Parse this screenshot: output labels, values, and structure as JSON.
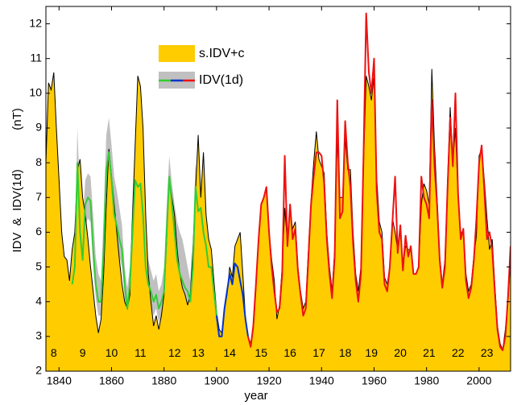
{
  "chart_data": {
    "type": "line",
    "xlabel": "year",
    "ylabel": "IDV  &  IDV(1d)",
    "ylabel_units": "(nT)",
    "xlim": [
      1835,
      2012
    ],
    "ylim": [
      2,
      12.5
    ],
    "xticks": [
      1840,
      1860,
      1880,
      1900,
      1920,
      1940,
      1960,
      1980,
      2000
    ],
    "yticks": [
      2,
      3,
      4,
      5,
      6,
      7,
      8,
      9,
      10,
      11,
      12
    ],
    "series": [
      {
        "name": "s.IDV+c",
        "color": "#ffcc00",
        "edge": "#000000",
        "x": [
          1835,
          1836,
          1837,
          1838,
          1839,
          1840,
          1841,
          1842,
          1843,
          1844,
          1845,
          1846,
          1847,
          1848,
          1849,
          1850,
          1851,
          1852,
          1853,
          1854,
          1855,
          1856,
          1857,
          1858,
          1859,
          1860,
          1861,
          1862,
          1863,
          1864,
          1865,
          1866,
          1867,
          1868,
          1869,
          1870,
          1871,
          1872,
          1873,
          1874,
          1875,
          1876,
          1877,
          1878,
          1879,
          1880,
          1881,
          1882,
          1883,
          1884,
          1885,
          1886,
          1887,
          1888,
          1889,
          1890,
          1891,
          1892,
          1893,
          1894,
          1895,
          1896,
          1897,
          1898,
          1899,
          1900,
          1901,
          1902,
          1903,
          1904,
          1905,
          1906,
          1907,
          1908,
          1909,
          1910,
          1911,
          1912,
          1913,
          1914,
          1915,
          1916,
          1917,
          1918,
          1919,
          1920,
          1921,
          1922,
          1923,
          1924,
          1925,
          1926,
          1927,
          1928,
          1929,
          1930,
          1931,
          1932,
          1933,
          1934,
          1935,
          1936,
          1937,
          1938,
          1939,
          1940,
          1941,
          1942,
          1943,
          1944,
          1945,
          1946,
          1947,
          1948,
          1949,
          1950,
          1951,
          1952,
          1953,
          1954,
          1955,
          1956,
          1957,
          1958,
          1959,
          1960,
          1961,
          1962,
          1963,
          1964,
          1965,
          1966,
          1967,
          1968,
          1969,
          1970,
          1971,
          1972,
          1973,
          1974,
          1975,
          1976,
          1977,
          1978,
          1979,
          1980,
          1981,
          1982,
          1983,
          1984,
          1985,
          1986,
          1987,
          1988,
          1989,
          1990,
          1991,
          1992,
          1993,
          1994,
          1995,
          1996,
          1997,
          1998,
          1999,
          2000,
          2001,
          2002,
          2003,
          2004,
          2005,
          2006,
          2007,
          2008,
          2009,
          2010,
          2011,
          2012
        ],
        "values": [
          8.0,
          10.3,
          10.1,
          10.6,
          9.0,
          7.5,
          6.0,
          5.3,
          5.2,
          4.6,
          5.5,
          6.0,
          7.8,
          8.1,
          7.0,
          6.5,
          5.8,
          5.0,
          4.3,
          3.6,
          3.1,
          3.5,
          4.8,
          6.8,
          8.4,
          7.6,
          6.8,
          6.0,
          5.2,
          4.5,
          4.0,
          3.8,
          4.2,
          6.5,
          8.5,
          10.5,
          10.2,
          9.0,
          6.5,
          4.8,
          4.0,
          3.3,
          3.6,
          3.2,
          3.6,
          4.2,
          5.8,
          7.6,
          7.0,
          6.5,
          5.5,
          4.8,
          4.4,
          4.2,
          3.9,
          4.2,
          5.5,
          7.2,
          8.8,
          7.0,
          8.3,
          6.5,
          5.8,
          5.5,
          4.6,
          3.7,
          3.2,
          3.1,
          3.8,
          4.2,
          5.0,
          4.7,
          5.6,
          5.8,
          6.0,
          4.8,
          3.5,
          3.0,
          2.8,
          3.2,
          4.4,
          5.8,
          6.8,
          7.0,
          7.3,
          6.0,
          5.2,
          4.6,
          3.5,
          3.9,
          5.0,
          6.7,
          5.7,
          6.6,
          6.1,
          6.3,
          5.0,
          4.3,
          3.8,
          4.0,
          5.5,
          6.9,
          8.0,
          8.9,
          8.1,
          7.9,
          7.7,
          6.0,
          5.0,
          4.3,
          5.5,
          8.7,
          7.0,
          7.0,
          8.7,
          7.8,
          7.8,
          6.0,
          4.8,
          4.3,
          5.0,
          8.0,
          10.5,
          10.2,
          9.8,
          10.5,
          7.6,
          6.3,
          6.0,
          4.7,
          4.5,
          5.0,
          6.4,
          6.0,
          5.5,
          6.2,
          5.0,
          5.6,
          5.5,
          5.5,
          4.8,
          4.8,
          5.0,
          6.8,
          7.4,
          7.2,
          6.8,
          10.7,
          8.5,
          7.0,
          5.3,
          4.5,
          5.2,
          7.5,
          9.6,
          8.0,
          9.0,
          7.0,
          6.0,
          6.0,
          4.8,
          4.3,
          4.5,
          5.3,
          5.9,
          8.2,
          8.4,
          7.5,
          6.4,
          5.5,
          5.8,
          4.5,
          3.3,
          2.8,
          2.6,
          3.2,
          4.0,
          5.2
        ]
      },
      {
        "name": "IDV(1d)",
        "band_color": "#c0c0c0",
        "pieces": [
          {
            "color": "#33cc33",
            "x": [
              1845,
              1846,
              1847,
              1848,
              1849,
              1850,
              1851,
              1852,
              1853,
              1854,
              1855,
              1856,
              1857,
              1858,
              1859,
              1860,
              1861,
              1862,
              1863,
              1864,
              1865,
              1866,
              1867,
              1868,
              1869,
              1870,
              1871,
              1872,
              1873,
              1874,
              1875,
              1876,
              1877,
              1878,
              1879,
              1880,
              1881,
              1882,
              1883,
              1884,
              1885,
              1886,
              1887,
              1888,
              1889,
              1890,
              1891,
              1892,
              1893,
              1894,
              1895,
              1896,
              1897,
              1898,
              1899,
              1900
            ],
            "values": [
              4.5,
              5.0,
              8.0,
              6.0,
              5.2,
              6.8,
              7.0,
              6.9,
              5.5,
              4.5,
              4.0,
              4.0,
              5.5,
              7.8,
              8.3,
              7.5,
              6.5,
              6.2,
              5.8,
              5.5,
              4.5,
              3.8,
              4.5,
              6.0,
              7.5,
              7.3,
              7.4,
              6.5,
              5.0,
              4.5,
              4.3,
              4.0,
              4.2,
              3.8,
              4.0,
              4.3,
              6.0,
              7.6,
              6.8,
              6.0,
              5.2,
              4.8,
              4.6,
              4.4,
              4.3,
              4.0,
              5.0,
              7.3,
              6.6,
              6.7,
              6.0,
              5.6,
              5.0,
              5.0,
              4.3,
              3.6
            ],
            "upper": [
              4.8,
              5.5,
              9.0,
              7.0,
              6.3,
              7.5,
              7.7,
              7.6,
              6.5,
              5.3,
              4.8,
              4.6,
              6.5,
              8.8,
              9.3,
              8.5,
              7.6,
              7.2,
              6.7,
              6.2,
              5.0,
              4.4,
              5.0,
              7.0,
              8.5,
              8.3,
              8.3,
              7.2,
              5.8,
              5.2,
              4.9,
              4.6,
              4.8,
              4.3,
              4.5,
              5.0,
              6.8,
              8.2,
              7.4,
              6.8,
              6.3,
              6.0,
              5.8,
              5.4,
              5.0,
              4.6,
              5.8,
              8.0,
              7.2,
              7.3,
              6.6,
              6.0,
              5.5,
              5.4,
              4.7,
              3.9
            ],
            "lower": [
              4.3,
              4.7,
              7.3,
              5.6,
              4.9,
              6.2,
              6.4,
              6.3,
              5.0,
              4.1,
              3.6,
              3.6,
              5.0,
              7.2,
              7.7,
              6.9,
              6.0,
              5.7,
              5.3,
              5.0,
              4.1,
              3.5,
              4.1,
              5.5,
              7.0,
              6.8,
              6.9,
              6.0,
              4.6,
              4.1,
              3.9,
              3.6,
              3.8,
              3.4,
              3.6,
              3.9,
              5.5,
              7.1,
              6.3,
              5.5,
              4.8,
              4.4,
              4.2,
              4.0,
              3.9,
              3.6,
              4.6,
              6.8,
              6.1,
              6.2,
              5.5,
              5.2,
              4.6,
              4.6,
              3.9,
              3.3
            ]
          },
          {
            "color": "#0033cc",
            "x": [
              1900,
              1901,
              1902,
              1903,
              1904,
              1905,
              1906,
              1907,
              1908,
              1909,
              1910,
              1911,
              1912
            ],
            "values": [
              3.6,
              3.0,
              3.0,
              3.8,
              4.3,
              4.8,
              4.5,
              5.1,
              5.0,
              4.6,
              4.2,
              3.5,
              3.0
            ]
          },
          {
            "color": "#ee1111",
            "x": [
              1912,
              1913,
              1914,
              1915,
              1916,
              1917,
              1918,
              1919,
              1920,
              1921,
              1922,
              1923,
              1924,
              1925,
              1926,
              1927,
              1928,
              1929,
              1930,
              1931,
              1932,
              1933,
              1934,
              1935,
              1936,
              1937,
              1938,
              1939,
              1940,
              1941,
              1942,
              1943,
              1944,
              1945,
              1946,
              1947,
              1948,
              1949,
              1950,
              1951,
              1952,
              1953,
              1954,
              1955,
              1956,
              1957,
              1958,
              1959,
              1960,
              1961,
              1962,
              1963,
              1964,
              1965,
              1966,
              1967,
              1968,
              1969,
              1970,
              1971,
              1972,
              1973,
              1974,
              1975,
              1976,
              1977,
              1978,
              1979,
              1980,
              1981,
              1982,
              1983,
              1984,
              1985,
              1986,
              1987,
              1988,
              1989,
              1990,
              1991,
              1992,
              1993,
              1994,
              1995,
              1996,
              1997,
              1998,
              1999,
              2000,
              2001,
              2002,
              2003,
              2004,
              2005,
              2006,
              2007,
              2008,
              2009,
              2010,
              2011,
              2012
            ],
            "values": [
              3.0,
              2.7,
              3.3,
              4.5,
              5.8,
              6.8,
              7.0,
              7.3,
              6.0,
              5.0,
              4.3,
              3.7,
              3.8,
              4.8,
              8.2,
              5.6,
              6.8,
              5.8,
              6.1,
              4.9,
              4.2,
              3.6,
              3.8,
              5.3,
              6.8,
              7.6,
              8.3,
              8.3,
              8.2,
              7.4,
              5.8,
              4.8,
              4.1,
              5.3,
              9.8,
              6.4,
              6.6,
              9.2,
              8.0,
              7.3,
              5.7,
              4.6,
              4.0,
              4.8,
              8.2,
              12.3,
              10.6,
              10.0,
              11.0,
              7.2,
              6.0,
              5.8,
              4.5,
              4.3,
              5.0,
              6.3,
              7.6,
              5.4,
              6.2,
              4.9,
              5.9,
              5.3,
              5.6,
              4.8,
              4.8,
              5.0,
              7.6,
              7.0,
              6.8,
              6.4,
              9.8,
              7.9,
              6.8,
              5.2,
              4.4,
              5.0,
              7.3,
              9.3,
              7.9,
              10.0,
              7.1,
              5.8,
              6.1,
              4.6,
              4.1,
              4.4,
              5.2,
              6.4,
              8.0,
              8.5,
              7.2,
              5.8,
              6.0,
              5.5,
              4.3,
              3.2,
              2.7,
              2.6,
              3.0,
              4.1,
              5.6
            ]
          }
        ]
      }
    ],
    "annotations": [
      {
        "text": "8",
        "x": 1838,
        "y": 2.5
      },
      {
        "text": "9",
        "x": 1849,
        "y": 2.5
      },
      {
        "text": "10",
        "x": 1860,
        "y": 2.5
      },
      {
        "text": "11",
        "x": 1871,
        "y": 2.5
      },
      {
        "text": "12",
        "x": 1884,
        "y": 2.5
      },
      {
        "text": "13",
        "x": 1893,
        "y": 2.5
      },
      {
        "text": "14",
        "x": 1905,
        "y": 2.5
      },
      {
        "text": "15",
        "x": 1917,
        "y": 2.5
      },
      {
        "text": "16",
        "x": 1928,
        "y": 2.5
      },
      {
        "text": "17",
        "x": 1939,
        "y": 2.5
      },
      {
        "text": "18",
        "x": 1949,
        "y": 2.5
      },
      {
        "text": "19",
        "x": 1959,
        "y": 2.5
      },
      {
        "text": "20",
        "x": 1970,
        "y": 2.5
      },
      {
        "text": "21",
        "x": 1981,
        "y": 2.5
      },
      {
        "text": "22",
        "x": 1992,
        "y": 2.5
      },
      {
        "text": "23",
        "x": 2003,
        "y": 2.5
      }
    ]
  }
}
